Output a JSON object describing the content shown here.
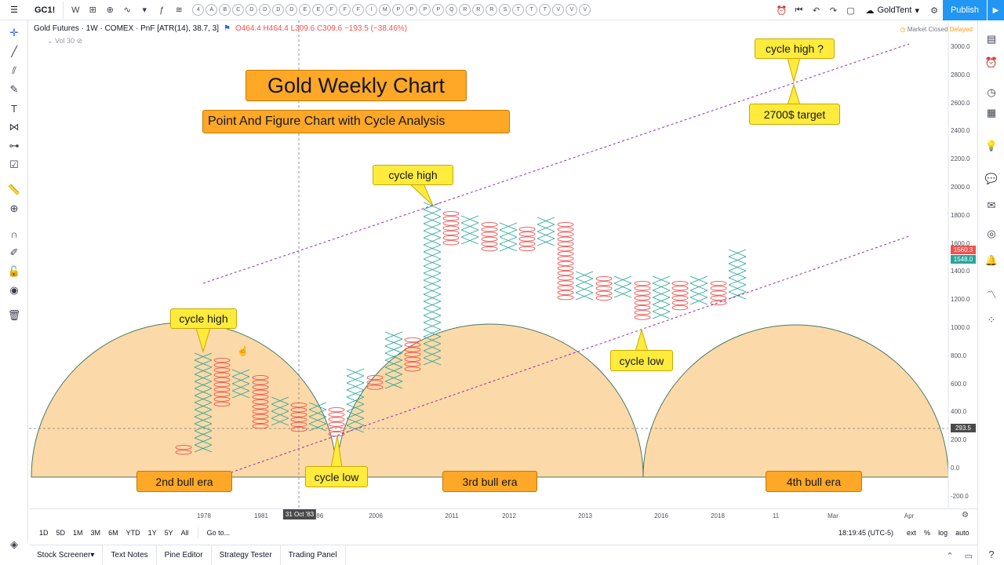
{
  "toolbar": {
    "symbol": "GC1!",
    "interval": "W",
    "pattern_letters": [
      "4",
      "A",
      "B",
      "C",
      "D",
      "D",
      "D",
      "D",
      "E",
      "E",
      "F",
      "F",
      "F",
      "I",
      "M",
      "P",
      "P",
      "P",
      "P",
      "Q",
      "R",
      "R",
      "R",
      "S",
      "T",
      "T",
      "T",
      "V",
      "V",
      "V"
    ],
    "layout_name": "GoldTent",
    "publish": "Publish"
  },
  "legend": {
    "title": "Gold Futures · 1W · COMEX · PnF [ATR(14), 38.7, 3]",
    "values": "O464.4 H464.4 L309.6 C309.6 −193.5 (−38.46%)",
    "volume": "Vol 30",
    "status": "Market Closed",
    "delayed": "Delayed"
  },
  "annotations": {
    "main_title": "Gold Weekly Chart",
    "subtitle": "Point And Figure Chart with Cycle Analysis",
    "callouts": [
      "cycle high",
      "cycle high",
      "cycle low",
      "cycle low",
      "cycle high ?",
      "2700$ target"
    ],
    "eras": [
      "2nd bull era",
      "3rd bull era",
      "4th bull era"
    ]
  },
  "price_axis": {
    "labels": [
      "3000.0",
      "2800.0",
      "2600.0",
      "2400.0",
      "2200.0",
      "2000.0",
      "1800.0",
      "1600.0",
      "1400.0",
      "1200.0",
      "1000.0",
      "800.0",
      "600.0",
      "400.0",
      "200.0",
      "0.0",
      "-200.0"
    ],
    "tag_upper": "1560.3",
    "tag_lower": "1548.0",
    "tag_cross": "293.5"
  },
  "time_axis": {
    "labels": [
      "1978",
      "1981",
      "'86",
      "2006",
      "2011",
      "2012",
      "2013",
      "2016",
      "2018",
      "11",
      "Mar",
      "Apr"
    ],
    "hover_label": "31 Oct '83"
  },
  "range_bar": {
    "ranges": [
      "1D",
      "5D",
      "1M",
      "3M",
      "6M",
      "YTD",
      "1Y",
      "5Y",
      "All"
    ],
    "goto": "Go to...",
    "time": "18:19:45 (UTC-5)",
    "opts": [
      "ext",
      "%",
      "log",
      "auto"
    ]
  },
  "bottom_tabs": [
    "Stock Screener",
    "Text Notes",
    "Pine Editor",
    "Strategy Tester",
    "Trading Panel"
  ],
  "colors": {
    "x_column": "#26a69a",
    "o_column": "#ef5350",
    "cycle_fill": "#fcd9a8",
    "cycle_stroke": "#4a7a66",
    "trend": "#9c27b0",
    "callout": "#ffeb3b",
    "label_box": "#ffa726",
    "accent": "#2196f3"
  }
}
